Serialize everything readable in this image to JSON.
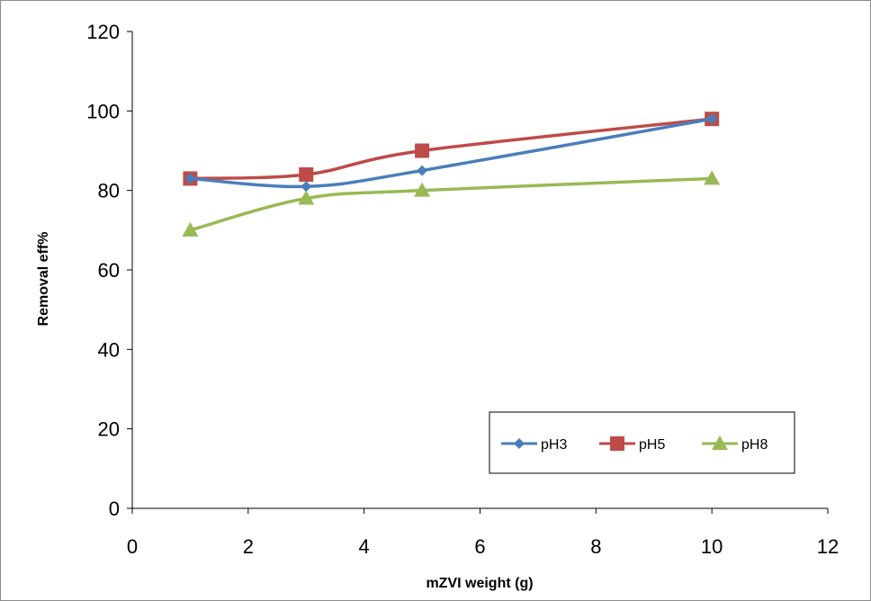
{
  "chart_data": {
    "type": "line",
    "title": "",
    "xlabel": "mZVI weight (g)",
    "ylabel": "Removal eff%",
    "xlim": [
      0,
      12
    ],
    "ylim": [
      0,
      120
    ],
    "xticks": [
      0,
      2,
      4,
      6,
      8,
      10,
      12
    ],
    "yticks": [
      0,
      20,
      40,
      60,
      80,
      100,
      120
    ],
    "grid": false,
    "legend_position": "bottom-right",
    "x": [
      1,
      3,
      5,
      10
    ],
    "series": [
      {
        "name": "pH3",
        "values": [
          83,
          81,
          85,
          98
        ],
        "color": "#4a7ebb",
        "marker": "diamond"
      },
      {
        "name": "pH5",
        "values": [
          83,
          84,
          90,
          98
        ],
        "color": "#be4b48",
        "marker": "square"
      },
      {
        "name": "pH8",
        "values": [
          70,
          78,
          80,
          83
        ],
        "color": "#98b954",
        "marker": "triangle"
      }
    ]
  }
}
